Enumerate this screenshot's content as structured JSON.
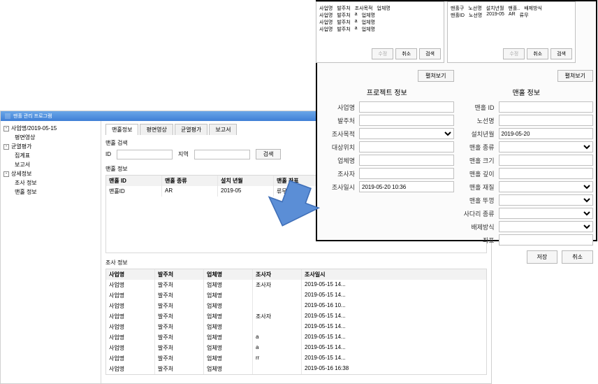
{
  "colors": {
    "accent_blue": "#4f86d8",
    "arrow_fill": "#5b8ed6",
    "arrow_stroke": "#3f6fb8",
    "red_arrow": "#e02020",
    "border": "#c0c0c0"
  },
  "top_lists": {
    "left": {
      "headers": [
        "사업명",
        "발주처",
        "조사목적",
        "업체명"
      ],
      "rows": [
        [
          "사업명",
          "발주처",
          "a",
          "업체명"
        ],
        [
          "사업명",
          "발주처",
          "a",
          "업체명"
        ],
        [
          "사업명",
          "발주처",
          "a",
          "업체명"
        ]
      ],
      "btn_edit": "수정",
      "btn_cancel": "취소",
      "btn_search": "검색"
    },
    "right": {
      "headers": [
        "맨홀구",
        "노선명",
        "설치년월",
        "맨홀..",
        "배제방식"
      ],
      "rows": [
        [
          "맨홀ID",
          "노선명",
          "2019-05",
          "AR",
          "류무"
        ]
      ],
      "btn_edit": "수정",
      "btn_cancel": "취소",
      "btn_search": "검색"
    }
  },
  "overlay": {
    "expand_label": "펼쳐보기",
    "left": {
      "title": "프로젝트 정보",
      "fields": {
        "biz": {
          "label": "사업명",
          "value": ""
        },
        "client": {
          "label": "발주처",
          "value": ""
        },
        "purpose": {
          "label": "조사목적",
          "value": "",
          "type": "select"
        },
        "target": {
          "label": "대상위치",
          "value": ""
        },
        "company": {
          "label": "업체명",
          "value": ""
        },
        "inspector": {
          "label": "조사자",
          "value": ""
        },
        "datetime": {
          "label": "조사일시",
          "value": "2019-05-20 10:36"
        }
      }
    },
    "right": {
      "title": "맨홀 정보",
      "fields": {
        "mid": {
          "label": "맨홀 ID",
          "value": ""
        },
        "route": {
          "label": "노선명",
          "value": ""
        },
        "install": {
          "label": "설치년월",
          "value": "2019-05-20"
        },
        "mtype": {
          "label": "맨홀 종류",
          "value": "",
          "type": "select"
        },
        "msize": {
          "label": "맨홀 크기",
          "value": ""
        },
        "mdepth": {
          "label": "맨홀 깊이",
          "value": ""
        },
        "mmaterial": {
          "label": "맨홀 재질",
          "value": "",
          "type": "select"
        },
        "mcover": {
          "label": "맨홀 뚜껑",
          "value": "",
          "type": "select"
        },
        "ladder": {
          "label": "사다리 종류",
          "value": "",
          "type": "select"
        },
        "drain": {
          "label": "배제방식",
          "value": "",
          "type": "select"
        },
        "coord": {
          "label": "좌표",
          "value": ""
        }
      }
    },
    "btn_save": "저장",
    "btn_cancel": "취소"
  },
  "main": {
    "title": "맨홀 관리 프로그램",
    "sidebar": {
      "root": "사업명/2019-05-15",
      "items": [
        {
          "label": "평면영상",
          "indent": 1
        },
        {
          "label": "균열평가",
          "indent": 0,
          "expand": "-"
        },
        {
          "label": "집계표",
          "indent": 1
        },
        {
          "label": "보고서",
          "indent": 1
        },
        {
          "label": "상세정보",
          "indent": 0,
          "expand": "-"
        },
        {
          "label": "조사 정보",
          "indent": 1
        },
        {
          "label": "맨홀 정보",
          "indent": 1
        }
      ]
    },
    "tabs": [
      "맨홀정보",
      "평면영상",
      "균열평가",
      "보고서"
    ],
    "search": {
      "title": "맨홀 검색",
      "id_label": "ID",
      "area_label": "지역",
      "btn": "검색"
    },
    "manhole_grid": {
      "title": "맨홀 정보",
      "headers": [
        "맨홀 ID",
        "맨홀 종류",
        "설치 년월",
        "맨홀 좌표"
      ],
      "rows": [
        [
          "맨홀ID",
          "AR",
          "2019-05",
          "류무"
        ]
      ]
    },
    "survey_grid": {
      "title": "조사 정보",
      "headers": [
        "사업명",
        "발주처",
        "업체명",
        "조사자",
        "조사일시"
      ],
      "rows": [
        [
          "사업명",
          "발주처",
          "업체명",
          "조사자",
          "2019-05-15 14..."
        ],
        [
          "사업명",
          "발주처",
          "업체명",
          "",
          "2019-05-15 14..."
        ],
        [
          "사업명",
          "발주처",
          "업체명",
          "",
          "2019-05-16 10..."
        ],
        [
          "사업명",
          "발주처",
          "업체명",
          "조사자",
          "2019-05-15 14..."
        ],
        [
          "사업명",
          "발주처",
          "업체명",
          "",
          "2019-05-15 14..."
        ],
        [
          "사업명",
          "발주처",
          "업체명",
          "a",
          "2019-05-15 14..."
        ],
        [
          "사업명",
          "발주처",
          "업체명",
          "a",
          "2019-05-15 14..."
        ],
        [
          "사업명",
          "발주처",
          "업체명",
          "rr",
          "2019-05-15 14..."
        ],
        [
          "사업명",
          "발주처",
          "업체명",
          "",
          "2019-05-16 16:38"
        ]
      ]
    }
  }
}
